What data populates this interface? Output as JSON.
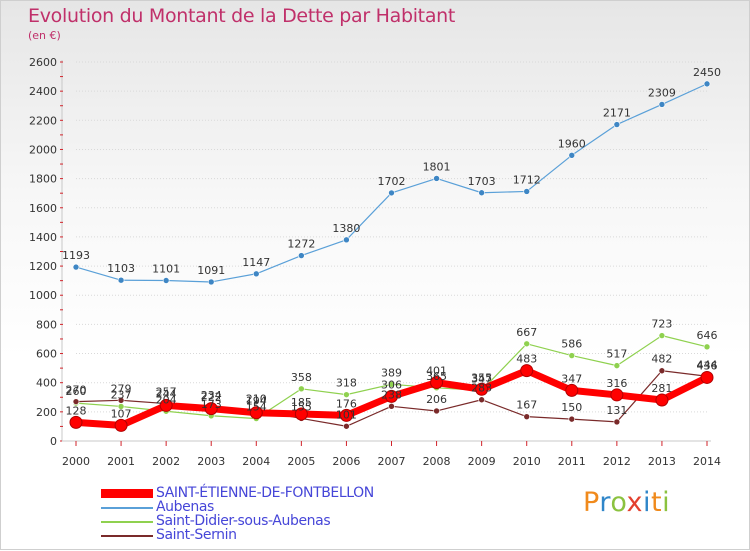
{
  "chart_data": {
    "type": "line",
    "title": "Evolution du Montant de la Dette par Habitant",
    "subtitle": "(en €)",
    "x": [
      2000,
      2001,
      2002,
      2003,
      2004,
      2005,
      2006,
      2007,
      2008,
      2009,
      2010,
      2011,
      2012,
      2013,
      2014
    ],
    "ylim": [
      0,
      2600
    ],
    "yticks": [
      0,
      200,
      400,
      600,
      800,
      1000,
      1200,
      1400,
      1600,
      1800,
      2000,
      2200,
      2400,
      2600
    ],
    "series": [
      {
        "name": "SAINT-ÉTIENNE-DE-FONTBELLON",
        "color": "#ff0000",
        "values": [
          128,
          107,
          244,
          222,
          194,
          185,
          176,
          306,
          401,
          355,
          483,
          347,
          316,
          281,
          436
        ]
      },
      {
        "name": "Aubenas",
        "color": "#5aa0d8",
        "values": [
          1193,
          1103,
          1101,
          1091,
          1147,
          1272,
          1380,
          1702,
          1801,
          1703,
          1712,
          1960,
          2171,
          2309,
          2450
        ]
      },
      {
        "name": "Saint-Didier-sous-Aubenas",
        "color": "#8fd14f",
        "values": [
          260,
          237,
          204,
          173,
          154,
          358,
          318,
          389,
          365,
          347,
          667,
          586,
          517,
          723,
          646
        ]
      },
      {
        "name": "Saint-Sernin",
        "color": "#7a2a2a",
        "values": [
          270,
          279,
          257,
          234,
          210,
          155,
          101,
          238,
          206,
          283,
          167,
          150,
          131,
          482,
          444
        ]
      }
    ]
  },
  "logo": {
    "letters": [
      "P",
      "r",
      "o",
      "x",
      "i",
      "t",
      "i"
    ]
  }
}
